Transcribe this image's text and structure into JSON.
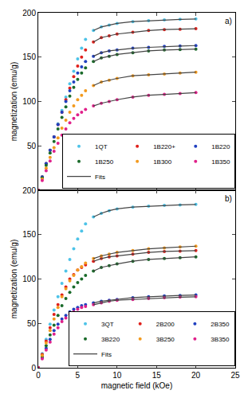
{
  "chart_data": [
    {
      "type": "scatter",
      "annotations": [
        "a)"
      ],
      "y_label": "magnetization (emu/g)",
      "xlim": [
        0,
        25
      ],
      "xticks": [
        0,
        5,
        10,
        15,
        20,
        25
      ],
      "ylim": [
        0,
        200
      ],
      "yticks": [
        50,
        100,
        150,
        200
      ],
      "tick_labels": "y",
      "grid": false,
      "legend": "lower right",
      "x": [
        0,
        0.5,
        1,
        1.5,
        2,
        2.5,
        3,
        3.5,
        4,
        4.5,
        5,
        5.5,
        6,
        7,
        8,
        9,
        10,
        12,
        14,
        16,
        18,
        20
      ],
      "series": [
        {
          "name": "1QT",
          "color": "#4dc3e8",
          "marker": "circle",
          "values": [
            0,
            15,
            30,
            45,
            60,
            75,
            90,
            105,
            120,
            134,
            148,
            160,
            170,
            180,
            184,
            186,
            188,
            190,
            191,
            192,
            192.5,
            193
          ]
        },
        {
          "name": "1B220+",
          "color": "#e0201b",
          "marker": "circle",
          "values": [
            0,
            15,
            30,
            45,
            60,
            74,
            88,
            102,
            115,
            128,
            140,
            150,
            158,
            167,
            172,
            174,
            176,
            178,
            180,
            181,
            181.5,
            182
          ]
        },
        {
          "name": "1B220",
          "color": "#2040c0",
          "marker": "circle",
          "values": [
            0,
            15,
            30,
            45,
            60,
            74,
            88,
            100,
            112,
            122,
            132,
            139,
            145,
            151,
            155,
            157,
            158,
            160,
            161,
            162,
            162.5,
            163
          ]
        },
        {
          "name": "1B250",
          "color": "#1a6b2a",
          "marker": "circle",
          "values": [
            0,
            14,
            28,
            42,
            55,
            69,
            82,
            94,
            106,
            116,
            125,
            132,
            138,
            145,
            149,
            151,
            153,
            155,
            157,
            158,
            158.5,
            159
          ]
        },
        {
          "name": "1B300",
          "color": "#f39a1e",
          "marker": "circle",
          "values": [
            0,
            12.5,
            25,
            37,
            48,
            59,
            70,
            79,
            88,
            95,
            102,
            107,
            112,
            118,
            122,
            124,
            126,
            129,
            130,
            131,
            132,
            133
          ]
        },
        {
          "name": "1B350",
          "color": "#e0208a",
          "marker": "circle",
          "values": [
            0,
            11,
            22,
            33,
            44,
            53,
            62,
            69,
            76,
            81,
            85,
            88,
            91,
            95,
            98,
            100,
            102,
            105,
            107,
            108,
            109,
            110
          ]
        },
        {
          "name": "Fits",
          "type": "line",
          "line_style": "solid",
          "color": "#444444",
          "x": [
            7,
            8,
            9,
            10,
            12,
            14,
            16,
            18,
            20
          ],
          "values": [
            180,
            184,
            186,
            188,
            190,
            191,
            192,
            192.5,
            193
          ]
        },
        {
          "name": "Fits",
          "type": "line",
          "line_style": "solid",
          "color": "#444444",
          "x": [
            7,
            8,
            9,
            10,
            12,
            14,
            16,
            18,
            20
          ],
          "values": [
            167,
            172,
            174,
            176,
            178,
            180,
            181,
            181.5,
            182
          ]
        },
        {
          "name": "Fits",
          "type": "line",
          "line_style": "solid",
          "color": "#444444",
          "x": [
            7,
            8,
            9,
            10,
            12,
            14,
            16,
            18,
            20
          ],
          "values": [
            151,
            155,
            157,
            158,
            160,
            161,
            162,
            162.5,
            163
          ]
        },
        {
          "name": "Fits",
          "type": "line",
          "line_style": "solid",
          "color": "#444444",
          "x": [
            7,
            8,
            9,
            10,
            12,
            14,
            16,
            18,
            20
          ],
          "values": [
            145,
            149,
            151,
            153,
            155,
            157,
            158,
            158.5,
            159
          ]
        },
        {
          "name": "Fits",
          "type": "line",
          "line_style": "solid",
          "color": "#444444",
          "x": [
            7,
            8,
            9,
            10,
            12,
            14,
            16,
            18,
            20
          ],
          "values": [
            118,
            122,
            124,
            126,
            129,
            130,
            131,
            132,
            133
          ]
        },
        {
          "name": "Fits",
          "type": "line",
          "line_style": "solid",
          "color": "#444444",
          "x": [
            7,
            8,
            9,
            10,
            12,
            14,
            16,
            18,
            20
          ],
          "values": [
            95,
            98,
            100,
            102,
            105,
            107,
            108,
            109,
            110
          ]
        }
      ]
    },
    {
      "type": "scatter",
      "annotations": [
        "b)"
      ],
      "x_label": "magnetic field (kOe)",
      "y_label": "magnetization (emu/g)",
      "xlim": [
        0,
        25
      ],
      "xticks": [
        0,
        5,
        10,
        15,
        20,
        25
      ],
      "ylim": [
        0,
        200
      ],
      "yticks": [
        0,
        50,
        100,
        150,
        200
      ],
      "grid": false,
      "legend": "lower right",
      "x": [
        0,
        0.5,
        1,
        1.5,
        2,
        2.5,
        3,
        3.5,
        4,
        4.5,
        5,
        5.5,
        6,
        7,
        8,
        9,
        10,
        12,
        14,
        16,
        18,
        20
      ],
      "series": [
        {
          "name": "3QT",
          "color": "#4dc3e8",
          "marker": "circle",
          "values": [
            0,
            16,
            32,
            49,
            65,
            80,
            95,
            109,
            122,
            134,
            145,
            154,
            162,
            170,
            174,
            177,
            179,
            181,
            182,
            183,
            183.5,
            184
          ]
        },
        {
          "name": "2B200",
          "color": "#e0201b",
          "marker": "circle",
          "values": [
            0,
            15,
            30,
            45,
            60,
            71,
            82,
            91,
            100,
            105,
            110,
            113,
            116,
            120,
            123,
            125,
            126,
            128,
            130,
            131,
            131.5,
            132
          ]
        },
        {
          "name": "2B350",
          "color": "#2040c0",
          "marker": "circle",
          "values": [
            0,
            11,
            22,
            32,
            42,
            49,
            55,
            59,
            63,
            66,
            68,
            70,
            71,
            73,
            75,
            76,
            77,
            79,
            80,
            81,
            81.5,
            82
          ]
        },
        {
          "name": "3B220",
          "color": "#1a6b2a",
          "marker": "circle",
          "values": [
            0,
            12.5,
            25,
            37,
            48,
            59,
            70,
            78,
            85,
            91,
            96,
            100,
            104,
            109,
            113,
            115,
            117,
            120,
            122,
            123,
            124,
            125
          ]
        },
        {
          "name": "3B250",
          "color": "#f39a1e",
          "marker": "circle",
          "values": [
            0,
            14,
            28,
            42,
            55,
            68,
            80,
            89,
            98,
            104,
            110,
            114,
            118,
            123,
            126,
            128,
            130,
            132,
            134,
            135,
            136,
            137
          ]
        },
        {
          "name": "3B350",
          "color": "#e0208a",
          "marker": "circle",
          "values": [
            0,
            10,
            20,
            29,
            38,
            45,
            52,
            56,
            60,
            63,
            66,
            68,
            69,
            71,
            73,
            75,
            76,
            77,
            78,
            79,
            79.5,
            80
          ]
        },
        {
          "name": "Fits",
          "type": "line",
          "line_style": "solid",
          "color": "#444444",
          "x": [
            7,
            8,
            9,
            10,
            12,
            14,
            16,
            18,
            20
          ],
          "values": [
            170,
            174,
            177,
            179,
            181,
            182,
            183,
            183.5,
            184
          ]
        },
        {
          "name": "Fits",
          "type": "line",
          "line_style": "solid",
          "color": "#444444",
          "x": [
            7,
            8,
            9,
            10,
            12,
            14,
            16,
            18,
            20
          ],
          "values": [
            120,
            123,
            125,
            126,
            128,
            130,
            131,
            131.5,
            132
          ]
        },
        {
          "name": "Fits",
          "type": "line",
          "line_style": "solid",
          "color": "#444444",
          "x": [
            7,
            8,
            9,
            10,
            12,
            14,
            16,
            18,
            20
          ],
          "values": [
            123,
            126,
            128,
            130,
            132,
            134,
            135,
            136,
            137
          ]
        },
        {
          "name": "Fits",
          "type": "line",
          "line_style": "solid",
          "color": "#444444",
          "x": [
            7,
            8,
            9,
            10,
            12,
            14,
            16,
            18,
            20
          ],
          "values": [
            109,
            113,
            115,
            117,
            120,
            122,
            123,
            124,
            125
          ]
        },
        {
          "name": "Fits",
          "type": "line",
          "line_style": "solid",
          "color": "#444444",
          "x": [
            7,
            8,
            9,
            10,
            12,
            14,
            16,
            18,
            20
          ],
          "values": [
            73,
            75,
            76,
            77,
            79,
            80,
            81,
            81.5,
            82
          ]
        },
        {
          "name": "Fits",
          "type": "line",
          "line_style": "solid",
          "color": "#444444",
          "x": [
            7,
            8,
            9,
            10,
            12,
            14,
            16,
            18,
            20
          ],
          "values": [
            71,
            73,
            75,
            76,
            77,
            78,
            79,
            79.5,
            80
          ]
        }
      ]
    }
  ]
}
